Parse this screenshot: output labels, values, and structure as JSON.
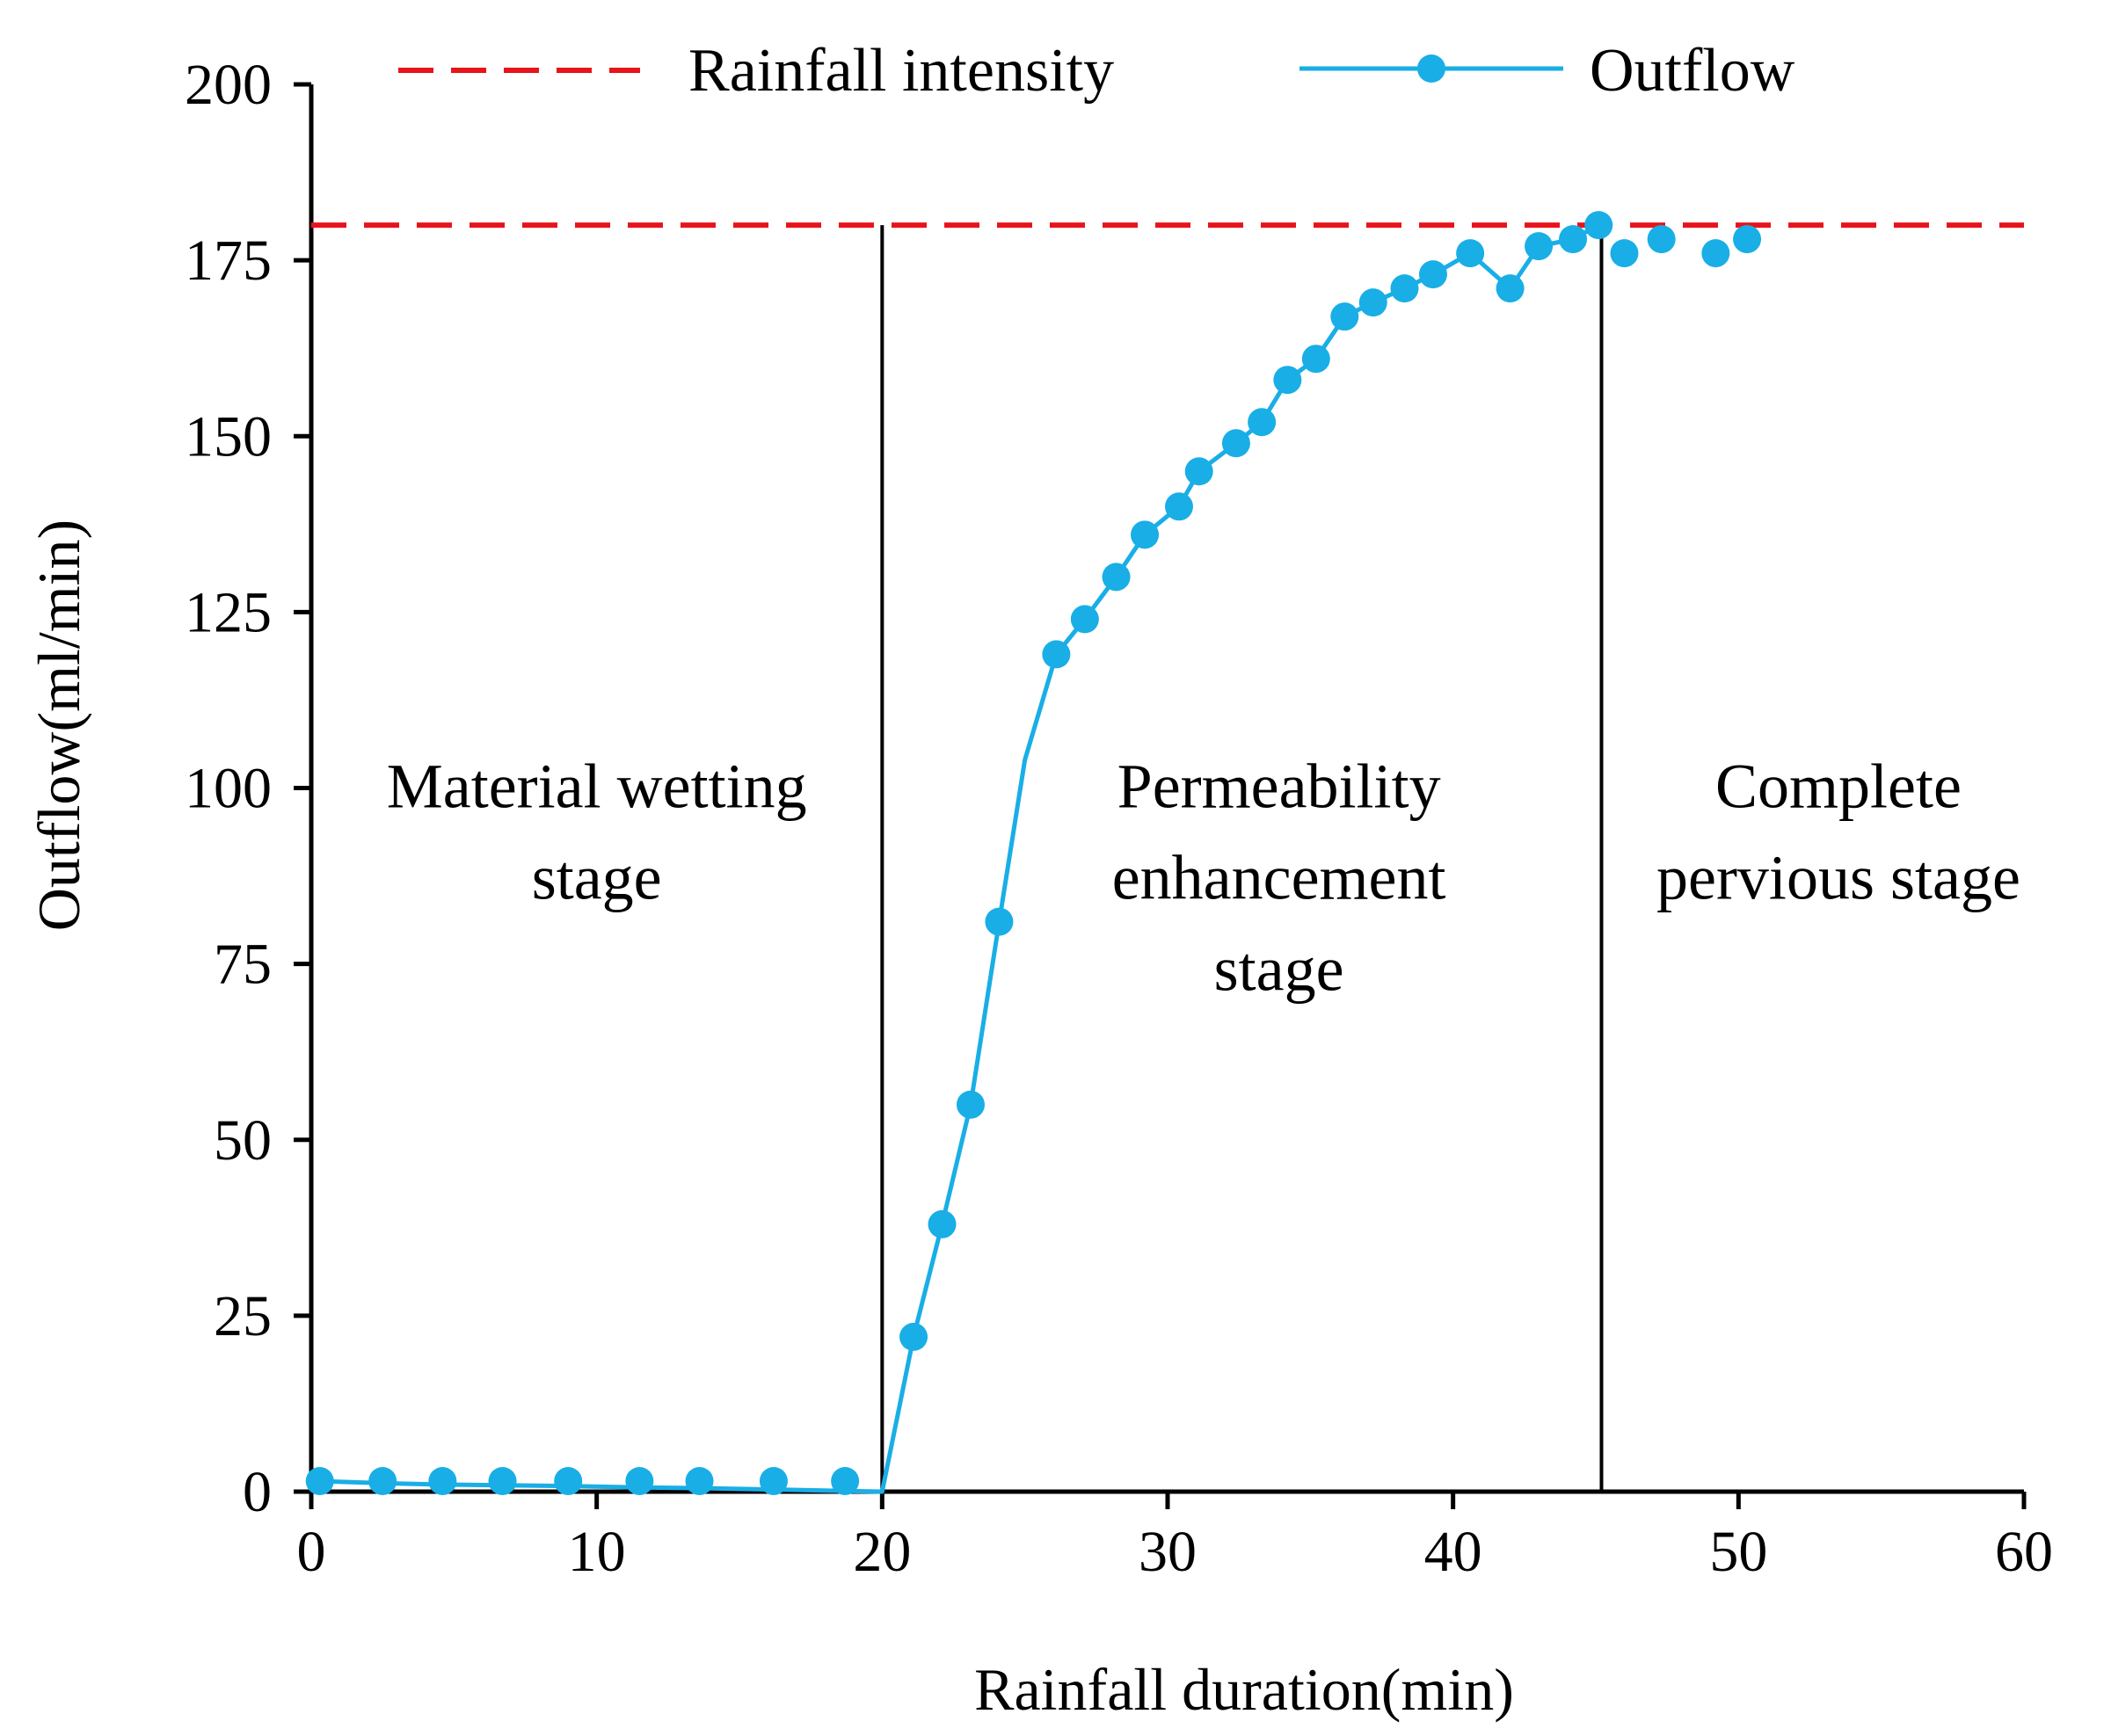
{
  "chart_data": {
    "type": "line",
    "title": "",
    "xlabel": "Rainfall duration(min)",
    "ylabel": "Outflow(ml/min)",
    "xlim": [
      0,
      60
    ],
    "ylim": [
      0,
      200
    ],
    "x_ticks": [
      0,
      10,
      20,
      30,
      40,
      50,
      60
    ],
    "y_ticks": [
      0,
      25,
      50,
      75,
      100,
      125,
      150,
      175,
      200
    ],
    "grid": false,
    "legend_position": "top",
    "series": [
      {
        "name": "Rainfall intensity",
        "style": "dashed",
        "color": "#e8141b",
        "x": [
          0,
          60
        ],
        "y": [
          180,
          180
        ]
      },
      {
        "name": "Outflow",
        "style": "line-with-markers",
        "color": "#19aee6",
        "line_x": [
          0.3,
          2.5,
          4.6,
          6.7,
          9.0,
          11.5,
          13.6,
          16.2,
          18.7,
          20.0,
          21.1,
          22.1,
          23.1,
          24.1,
          25.0,
          26.1,
          27.1,
          28.2,
          29.2,
          30.4,
          31.1,
          32.4,
          33.3,
          34.2,
          35.2,
          36.2,
          37.2,
          38.3,
          39.3,
          40.6,
          42.0,
          43.0,
          44.2,
          45.1
        ],
        "line_y": [
          1.5,
          1.2,
          1.0,
          0.9,
          0.8,
          0.6,
          0.5,
          0.3,
          0.1,
          0.0,
          22,
          38,
          55,
          81,
          104,
          119,
          124,
          130,
          136,
          140,
          145,
          149,
          152,
          158,
          161,
          167,
          169,
          171,
          173,
          176,
          171,
          177,
          178,
          180
        ],
        "marker_x": [
          0.3,
          2.5,
          4.6,
          6.7,
          9.0,
          11.5,
          13.6,
          16.2,
          18.7,
          21.1,
          22.1,
          23.1,
          24.1,
          26.1,
          27.1,
          28.2,
          29.2,
          30.4,
          31.1,
          32.4,
          33.3,
          34.2,
          35.2,
          36.2,
          37.2,
          38.3,
          39.3,
          40.6,
          42.0,
          43.0,
          44.2,
          45.1,
          46.0,
          47.3,
          49.2,
          50.3
        ],
        "marker_y": [
          1.5,
          1.5,
          1.5,
          1.5,
          1.5,
          1.5,
          1.5,
          1.5,
          1.5,
          22,
          38,
          55,
          81,
          119,
          124,
          130,
          136,
          140,
          145,
          149,
          152,
          158,
          161,
          167,
          169,
          171,
          173,
          176,
          171,
          177,
          178,
          180,
          176,
          178,
          176,
          178
        ]
      }
    ],
    "stage_boundaries_x": [
      20,
      45.2
    ],
    "stage_boundary_top_y": 180,
    "stages": [
      {
        "lines": [
          "Material wetting",
          "stage"
        ],
        "x": 10,
        "y": 100
      },
      {
        "lines": [
          "Permeability",
          "enhancement",
          "stage"
        ],
        "x": 33.9,
        "y": 100
      },
      {
        "lines": [
          "Complete",
          "pervious stage"
        ],
        "x": 53.5,
        "y": 100
      }
    ]
  }
}
